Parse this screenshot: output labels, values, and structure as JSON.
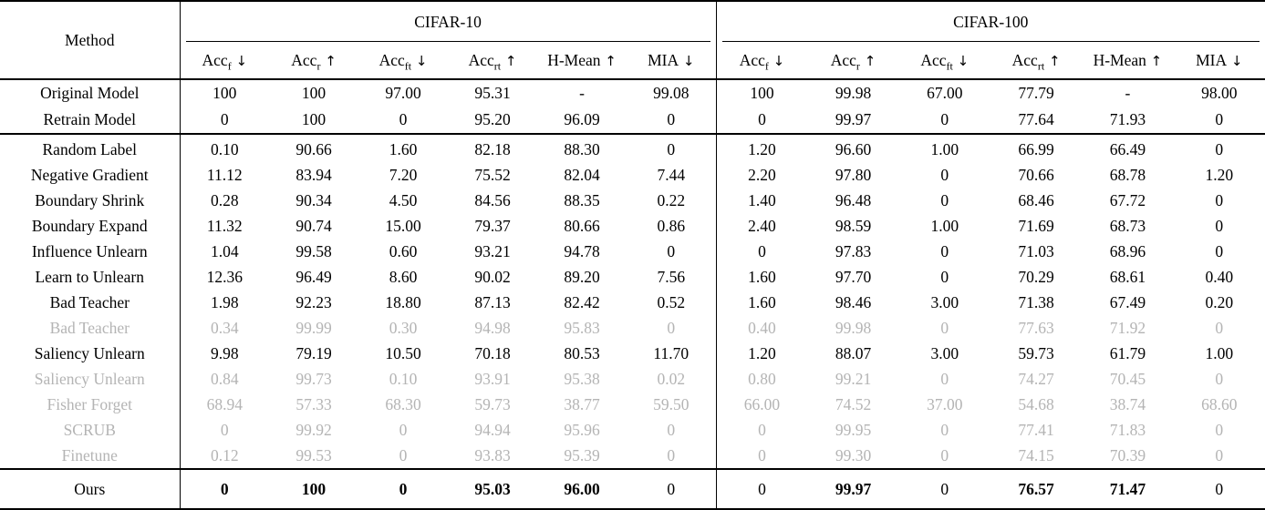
{
  "colors": {
    "text": "#000000",
    "muted": "#b4b4b4",
    "rule": "#000000",
    "background": "#ffffff"
  },
  "table": {
    "method_header": "Method",
    "groups": [
      {
        "label": "CIFAR-10"
      },
      {
        "label": "CIFAR-100"
      }
    ],
    "metrics": [
      {
        "base": "Acc",
        "sub": "f",
        "arrow": "↓"
      },
      {
        "base": "Acc",
        "sub": "r",
        "arrow": "↑"
      },
      {
        "base": "Acc",
        "sub": "ft",
        "arrow": "↓"
      },
      {
        "base": "Acc",
        "sub": "rt",
        "arrow": "↑"
      },
      {
        "base": "H-Mean",
        "sub": "",
        "arrow": "↑"
      },
      {
        "base": "MIA",
        "sub": "",
        "arrow": "↓"
      }
    ],
    "sections": {
      "reference": [
        {
          "method": "Original Model",
          "gray": false,
          "bold": null,
          "values": [
            "100",
            "100",
            "97.00",
            "95.31",
            "-",
            "99.08",
            "100",
            "99.98",
            "67.00",
            "77.79",
            "-",
            "98.00"
          ]
        },
        {
          "method": "Retrain Model",
          "gray": false,
          "bold": null,
          "values": [
            "0",
            "100",
            "0",
            "95.20",
            "96.09",
            "0",
            "0",
            "99.97",
            "0",
            "77.64",
            "71.93",
            "0"
          ]
        }
      ],
      "baselines": [
        {
          "method": "Random Label",
          "gray": false,
          "bold": null,
          "values": [
            "0.10",
            "90.66",
            "1.60",
            "82.18",
            "88.30",
            "0",
            "1.20",
            "96.60",
            "1.00",
            "66.99",
            "66.49",
            "0"
          ]
        },
        {
          "method": "Negative Gradient",
          "gray": false,
          "bold": null,
          "values": [
            "11.12",
            "83.94",
            "7.20",
            "75.52",
            "82.04",
            "7.44",
            "2.20",
            "97.80",
            "0",
            "70.66",
            "68.78",
            "1.20"
          ]
        },
        {
          "method": "Boundary Shrink",
          "gray": false,
          "bold": null,
          "values": [
            "0.28",
            "90.34",
            "4.50",
            "84.56",
            "88.35",
            "0.22",
            "1.40",
            "96.48",
            "0",
            "68.46",
            "67.72",
            "0"
          ]
        },
        {
          "method": "Boundary Expand",
          "gray": false,
          "bold": null,
          "values": [
            "11.32",
            "90.74",
            "15.00",
            "79.37",
            "80.66",
            "0.86",
            "2.40",
            "98.59",
            "1.00",
            "71.69",
            "68.73",
            "0"
          ]
        },
        {
          "method": "Influence Unlearn",
          "gray": false,
          "bold": null,
          "values": [
            "1.04",
            "99.58",
            "0.60",
            "93.21",
            "94.78",
            "0",
            "0",
            "97.83",
            "0",
            "71.03",
            "68.96",
            "0"
          ]
        },
        {
          "method": "Learn to Unlearn",
          "gray": false,
          "bold": null,
          "values": [
            "12.36",
            "96.49",
            "8.60",
            "90.02",
            "89.20",
            "7.56",
            "1.60",
            "97.70",
            "0",
            "70.29",
            "68.61",
            "0.40"
          ]
        },
        {
          "method": "Bad Teacher",
          "gray": false,
          "bold": null,
          "values": [
            "1.98",
            "92.23",
            "18.80",
            "87.13",
            "82.42",
            "0.52",
            "1.60",
            "98.46",
            "3.00",
            "71.38",
            "67.49",
            "0.20"
          ]
        },
        {
          "method": "Bad Teacher",
          "gray": true,
          "bold": null,
          "values": [
            "0.34",
            "99.99",
            "0.30",
            "94.98",
            "95.83",
            "0",
            "0.40",
            "99.98",
            "0",
            "77.63",
            "71.92",
            "0"
          ]
        },
        {
          "method": "Saliency Unlearn",
          "gray": false,
          "bold": null,
          "values": [
            "9.98",
            "79.19",
            "10.50",
            "70.18",
            "80.53",
            "11.70",
            "1.20",
            "88.07",
            "3.00",
            "59.73",
            "61.79",
            "1.00"
          ]
        },
        {
          "method": "Saliency Unlearn",
          "gray": true,
          "bold": null,
          "values": [
            "0.84",
            "99.73",
            "0.10",
            "93.91",
            "95.38",
            "0.02",
            "0.80",
            "99.21",
            "0",
            "74.27",
            "70.45",
            "0"
          ]
        },
        {
          "method": "Fisher Forget",
          "gray": true,
          "bold": null,
          "values": [
            "68.94",
            "57.33",
            "68.30",
            "59.73",
            "38.77",
            "59.50",
            "66.00",
            "74.52",
            "37.00",
            "54.68",
            "38.74",
            "68.60"
          ]
        },
        {
          "method": "SCRUB",
          "gray": true,
          "bold": null,
          "values": [
            "0",
            "99.92",
            "0",
            "94.94",
            "95.96",
            "0",
            "0",
            "99.95",
            "0",
            "77.41",
            "71.83",
            "0"
          ]
        },
        {
          "method": "Finetune",
          "gray": true,
          "bold": null,
          "values": [
            "0.12",
            "99.53",
            "0",
            "93.83",
            "95.39",
            "0",
            "0",
            "99.30",
            "0",
            "74.15",
            "70.39",
            "0"
          ]
        }
      ],
      "ours": [
        {
          "method": "Ours",
          "gray": false,
          "bold": [
            true,
            true,
            true,
            true,
            true,
            false,
            false,
            true,
            false,
            true,
            true,
            false
          ],
          "values": [
            "0",
            "100",
            "0",
            "95.03",
            "96.00",
            "0",
            "0",
            "99.97",
            "0",
            "76.57",
            "71.47",
            "0"
          ]
        }
      ]
    }
  }
}
